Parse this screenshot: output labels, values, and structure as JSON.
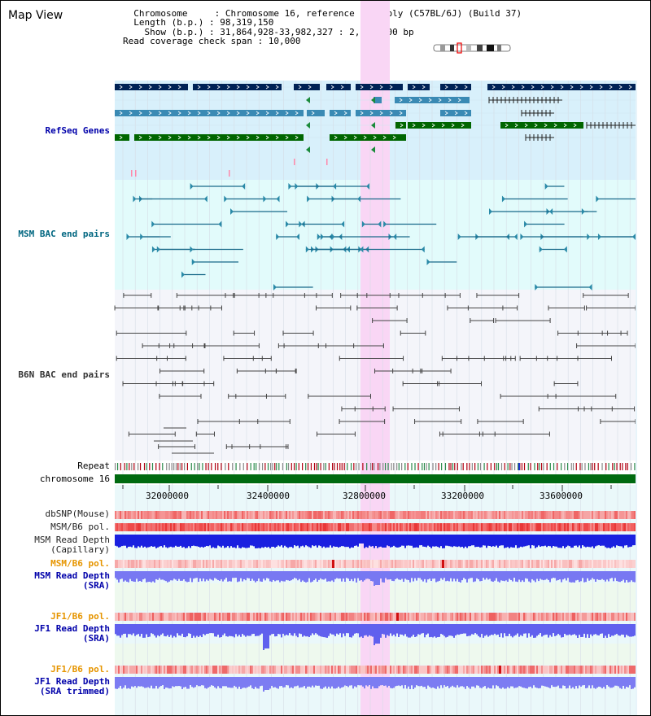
{
  "header": {
    "title": "Map View",
    "info_lines": [
      "  Chromosome     : Chromosome 16, reference assembly (C57BL/6J) (Build 37)",
      "  Length (b.p.) : 98,319,150",
      "    Show (b.p.) : 31,864,928-33,982,327 : 2,117,400 bp",
      "Read coverage check span : 10,000"
    ]
  },
  "tracks": {
    "refseq": "RefSeq Genes",
    "msm_bac": "MSM BAC end pairs",
    "b6n_bac": "B6N BAC end pairs",
    "repeat": "Repeat",
    "chromosome": "chromosome 16",
    "dbsnp": "dbSNP(Mouse)",
    "msm_b6_pol": "MSM/B6 pol.",
    "msm_depth_cap_1": "MSM Read Depth",
    "msm_depth_cap_2": "(Capillary)",
    "msm_b6_pol_sra": "MSM/B6 pol.",
    "msm_depth_sra_1": "MSM Read Depth",
    "msm_depth_sra_2": "(SRA)",
    "jf1_b6_pol": "JF1/B6 pol.",
    "jf1_depth_1": "JF1 Read Depth",
    "jf1_depth_2": "(SRA)",
    "jf1_b6_pol_t": "JF1/B6 pol.",
    "jf1_trim_1": "JF1 Read Depth",
    "jf1_trim_2": "(SRA trimmed)"
  },
  "axis": {
    "ticks": [
      "32000000",
      "32400000",
      "32800000",
      "33200000",
      "33600000"
    ]
  },
  "colors": {
    "refseq_label": "#0000aa",
    "msm_label": "#006680",
    "b6n_label": "#000000",
    "orange_label": "#e69500",
    "blue_label": "#0000aa"
  }
}
